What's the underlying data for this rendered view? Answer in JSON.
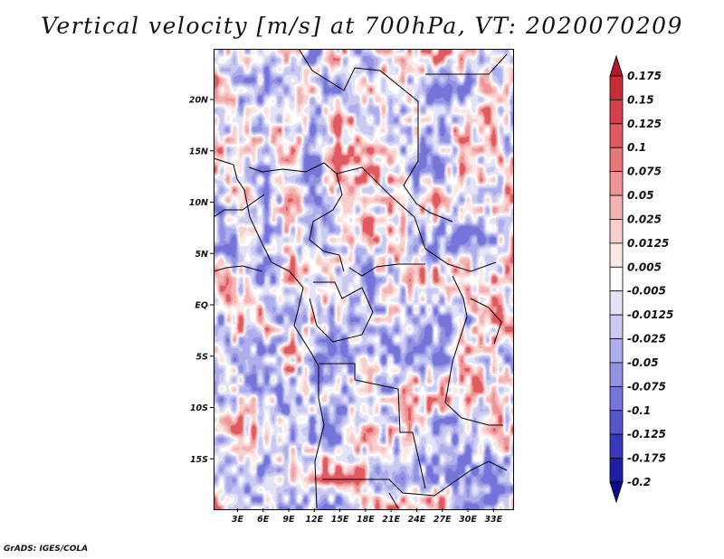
{
  "chart_data": {
    "type": "heatmap",
    "title": "Vertical velocity [m/s] at 700hPa, VT: 2020070209",
    "variable": "Vertical velocity",
    "units": "m/s",
    "level": "700hPa",
    "valid_time": "2020070209",
    "xlim": [
      0,
      35
    ],
    "ylim": [
      -20,
      25
    ],
    "x_ticks": [
      {
        "value": 3,
        "label": "3E"
      },
      {
        "value": 6,
        "label": "6E"
      },
      {
        "value": 9,
        "label": "9E"
      },
      {
        "value": 12,
        "label": "12E"
      },
      {
        "value": 15,
        "label": "15E"
      },
      {
        "value": 18,
        "label": "18E"
      },
      {
        "value": 21,
        "label": "21E"
      },
      {
        "value": 24,
        "label": "24E"
      },
      {
        "value": 27,
        "label": "27E"
      },
      {
        "value": 30,
        "label": "30E"
      },
      {
        "value": 33,
        "label": "33E"
      }
    ],
    "y_ticks": [
      {
        "value": 20,
        "label": "20N"
      },
      {
        "value": 15,
        "label": "15N"
      },
      {
        "value": 10,
        "label": "10N"
      },
      {
        "value": 5,
        "label": "5N"
      },
      {
        "value": 0,
        "label": "EQ"
      },
      {
        "value": -5,
        "label": "5S"
      },
      {
        "value": -10,
        "label": "10S"
      },
      {
        "value": -15,
        "label": "15S"
      }
    ],
    "colorbar": {
      "labels": [
        "0.175",
        "0.15",
        "0.125",
        "0.1",
        "0.075",
        "0.05",
        "0.025",
        "0.0125",
        "0.005",
        "-0.005",
        "-0.0125",
        "-0.025",
        "-0.05",
        "-0.075",
        "-0.1",
        "-0.125",
        "-0.175",
        "-0.2"
      ],
      "colors": [
        "#b2182b",
        "#c62c34",
        "#d6404a",
        "#e05a5f",
        "#e8777a",
        "#ef9598",
        "#f4b3b3",
        "#f8cfcd",
        "#fce8e6",
        "#ffffff",
        "#e3e3f8",
        "#c9c9f2",
        "#aeaeec",
        "#9292e3",
        "#7474d9",
        "#5656cc",
        "#3838bb",
        "#1d1da6",
        "#0c0c8c"
      ]
    }
  },
  "credit": "GrADS: IGES/COLA"
}
